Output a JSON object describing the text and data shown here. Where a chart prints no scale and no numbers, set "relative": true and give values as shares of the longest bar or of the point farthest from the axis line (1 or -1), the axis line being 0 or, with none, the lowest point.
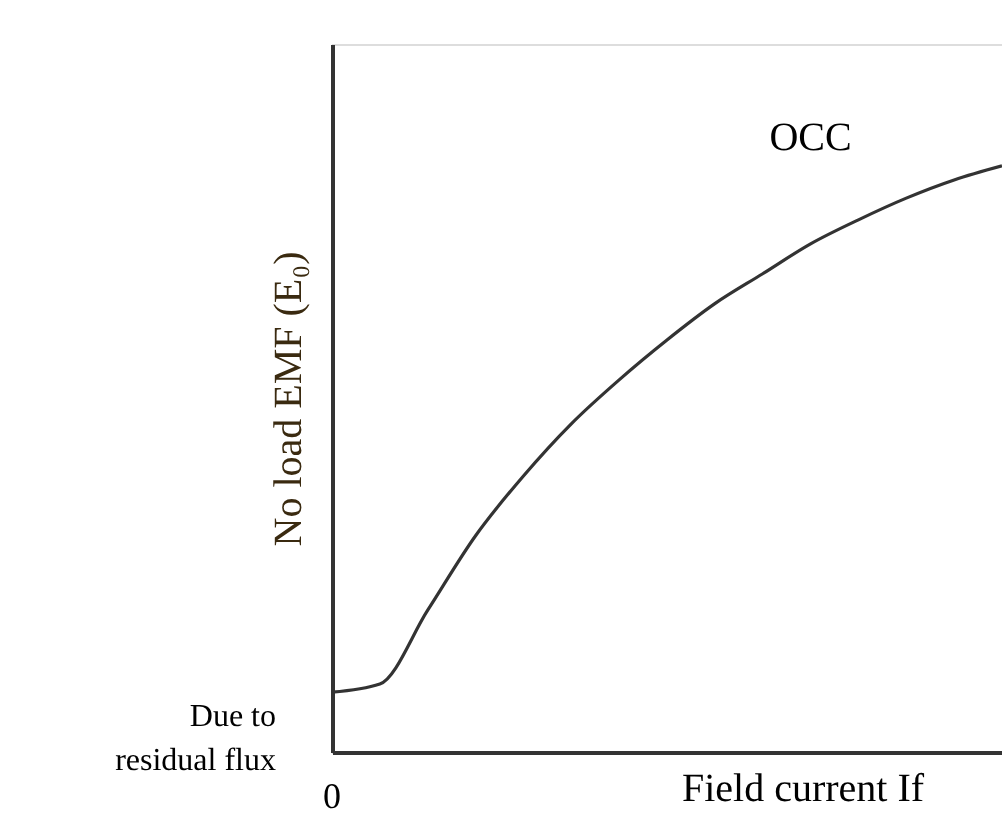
{
  "chart_data": {
    "type": "line",
    "relative": true,
    "xlabel": "Field current If",
    "ylabel": "No load EMF (E₀)",
    "categories": [
      null,
      null,
      null,
      null,
      null,
      null,
      null,
      null,
      null,
      null,
      null,
      null,
      null,
      null,
      null
    ],
    "series": [
      {
        "name": "OCC",
        "color": "#333333",
        "values": [
          0.102,
          0.116,
          0.242,
          0.369,
          0.471,
          0.56,
          0.635,
          0.703,
          0.765,
          0.816,
          0.867,
          0.908,
          0.945,
          0.976,
          1.0
        ]
      }
    ],
    "annotations": [
      "Due to\nresidual flux",
      "0"
    ],
    "grid": false,
    "legend": false,
    "marker": "none",
    "line_style": "solid"
  }
}
